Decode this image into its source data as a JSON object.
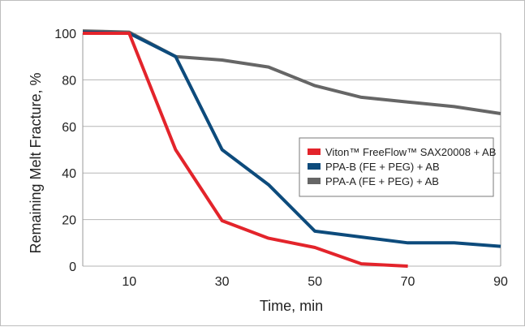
{
  "chart_data": {
    "type": "line",
    "title": "",
    "xlabel": "Time, min",
    "ylabel": "Remaining Melt Fracture, %",
    "xlim": [
      0,
      90
    ],
    "ylim": [
      0,
      100
    ],
    "x_ticks": [
      10,
      30,
      50,
      70,
      90
    ],
    "y_ticks": [
      0,
      20,
      40,
      60,
      80,
      100
    ],
    "grid": "horizontal",
    "legend_position": "center-right",
    "series": [
      {
        "name": "Viton™ FreeFlow™ SAX20008 + AB",
        "color": "#e3242b",
        "x": [
          0,
          10,
          20,
          30,
          40,
          50,
          60,
          70
        ],
        "y": [
          100,
          100,
          50,
          19.5,
          12,
          8,
          1,
          0
        ]
      },
      {
        "name": "PPA-B (FE + PEG) + AB",
        "color": "#0d4b7c",
        "x": [
          0,
          10,
          20,
          30,
          40,
          50,
          60,
          70,
          80,
          90
        ],
        "y": [
          100.5,
          100,
          90,
          50,
          35,
          15,
          12.5,
          10,
          10,
          8.5
        ]
      },
      {
        "name": "PPA-A (FE + PEG) + AB",
        "color": "#666666",
        "x": [
          0,
          10,
          20,
          30,
          40,
          50,
          60,
          70,
          80,
          90
        ],
        "y": [
          101,
          100.5,
          90,
          88.5,
          85.5,
          77.5,
          72.5,
          70.5,
          68.5,
          65.5
        ]
      }
    ]
  }
}
